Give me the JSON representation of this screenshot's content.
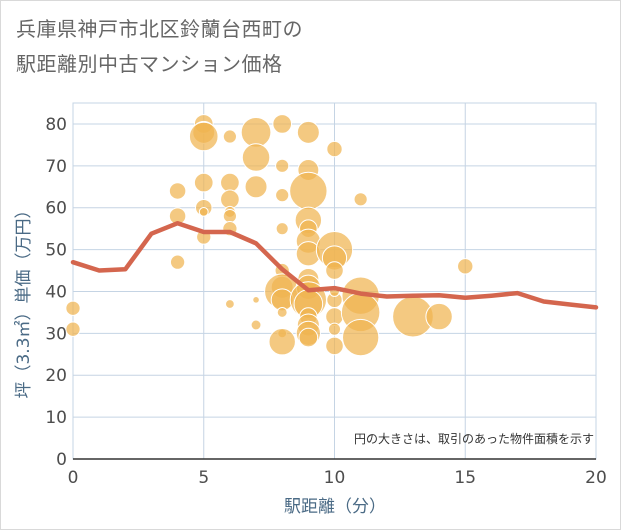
{
  "title_line1": "兵庫県神戸市北区鈴蘭台西町の",
  "title_line2": "駅距離別中古マンション価格",
  "chart_data": {
    "type": "scatter",
    "xlabel": "駅距離（分）",
    "ylabel": "坪（3.3㎡）単価（万円）",
    "xlim": [
      0,
      20
    ],
    "ylim": [
      0,
      85
    ],
    "xticks": [
      0,
      5,
      10,
      15,
      20
    ],
    "yticks": [
      0,
      10,
      20,
      30,
      40,
      50,
      60,
      70,
      80
    ],
    "grid": true,
    "note": "円の大きさは、取引のあった物件面積を示す",
    "bubble_color": "#f0b450",
    "line_color": "#d4664e",
    "bubbles": [
      {
        "x": 0,
        "y": 36,
        "s": 1.3
      },
      {
        "x": 0,
        "y": 31,
        "s": 1.3
      },
      {
        "x": 4,
        "y": 64,
        "s": 1.5
      },
      {
        "x": 4,
        "y": 58,
        "s": 1.5
      },
      {
        "x": 4,
        "y": 47,
        "s": 1.3
      },
      {
        "x": 5,
        "y": 80,
        "s": 1.7
      },
      {
        "x": 5,
        "y": 78,
        "s": 2.0
      },
      {
        "x": 5,
        "y": 77,
        "s": 2.6
      },
      {
        "x": 5,
        "y": 66,
        "s": 1.7
      },
      {
        "x": 5,
        "y": 60,
        "s": 1.5
      },
      {
        "x": 5,
        "y": 59,
        "s": 0.8
      },
      {
        "x": 5,
        "y": 53,
        "s": 1.3
      },
      {
        "x": 6,
        "y": 77,
        "s": 1.2
      },
      {
        "x": 6,
        "y": 66,
        "s": 1.7
      },
      {
        "x": 6,
        "y": 62,
        "s": 1.7
      },
      {
        "x": 6,
        "y": 59,
        "s": 1.0
      },
      {
        "x": 6,
        "y": 58,
        "s": 1.2
      },
      {
        "x": 6,
        "y": 55,
        "s": 1.3
      },
      {
        "x": 6,
        "y": 37,
        "s": 0.8
      },
      {
        "x": 7,
        "y": 78,
        "s": 2.7
      },
      {
        "x": 7,
        "y": 72,
        "s": 2.5
      },
      {
        "x": 7,
        "y": 65,
        "s": 2.0
      },
      {
        "x": 7,
        "y": 38,
        "s": 0.6
      },
      {
        "x": 7,
        "y": 32,
        "s": 0.9
      },
      {
        "x": 8,
        "y": 80,
        "s": 1.7
      },
      {
        "x": 8,
        "y": 70,
        "s": 1.2
      },
      {
        "x": 8,
        "y": 63,
        "s": 1.2
      },
      {
        "x": 8,
        "y": 55,
        "s": 1.1
      },
      {
        "x": 8,
        "y": 45,
        "s": 1.3
      },
      {
        "x": 8,
        "y": 41,
        "s": 2.0
      },
      {
        "x": 8,
        "y": 40,
        "s": 3.2
      },
      {
        "x": 8,
        "y": 38,
        "s": 2.0
      },
      {
        "x": 8,
        "y": 35,
        "s": 0.9
      },
      {
        "x": 8,
        "y": 30,
        "s": 0.8
      },
      {
        "x": 8,
        "y": 28,
        "s": 2.4
      },
      {
        "x": 9,
        "y": 78,
        "s": 2.0
      },
      {
        "x": 9,
        "y": 69,
        "s": 1.9
      },
      {
        "x": 9,
        "y": 64,
        "s": 3.4
      },
      {
        "x": 9,
        "y": 57,
        "s": 2.4
      },
      {
        "x": 9,
        "y": 55,
        "s": 1.6
      },
      {
        "x": 9,
        "y": 52,
        "s": 2.2
      },
      {
        "x": 9,
        "y": 49,
        "s": 2.2
      },
      {
        "x": 9,
        "y": 43,
        "s": 1.9
      },
      {
        "x": 9,
        "y": 41,
        "s": 2.2
      },
      {
        "x": 9,
        "y": 38,
        "s": 3.3
      },
      {
        "x": 9,
        "y": 37,
        "s": 2.6
      },
      {
        "x": 9,
        "y": 34,
        "s": 1.6
      },
      {
        "x": 9,
        "y": 32,
        "s": 2.0
      },
      {
        "x": 9,
        "y": 30,
        "s": 2.2
      },
      {
        "x": 9,
        "y": 29,
        "s": 1.7
      },
      {
        "x": 10,
        "y": 74,
        "s": 1.4
      },
      {
        "x": 10,
        "y": 50,
        "s": 3.3
      },
      {
        "x": 10,
        "y": 48,
        "s": 2.2
      },
      {
        "x": 10,
        "y": 45,
        "s": 1.6
      },
      {
        "x": 10,
        "y": 38,
        "s": 1.4
      },
      {
        "x": 10,
        "y": 34,
        "s": 1.6
      },
      {
        "x": 10,
        "y": 31,
        "s": 1.1
      },
      {
        "x": 10,
        "y": 27,
        "s": 1.6
      },
      {
        "x": 10,
        "y": 40,
        "s": 0.9
      },
      {
        "x": 11,
        "y": 62,
        "s": 1.2
      },
      {
        "x": 11,
        "y": 39,
        "s": 3.4
      },
      {
        "x": 11,
        "y": 35,
        "s": 3.5
      },
      {
        "x": 11,
        "y": 29,
        "s": 3.3
      },
      {
        "x": 13,
        "y": 34,
        "s": 3.7
      },
      {
        "x": 14,
        "y": 34,
        "s": 2.4
      },
      {
        "x": 15,
        "y": 46,
        "s": 1.4
      }
    ],
    "avg_line": {
      "x": [
        0,
        1,
        2,
        3,
        4,
        5,
        6,
        7,
        8,
        9,
        10,
        11,
        12,
        13,
        14,
        15,
        16,
        17,
        18,
        19,
        20
      ],
      "y": [
        47,
        45,
        45.3,
        53.8,
        56.3,
        54.2,
        54.2,
        51.5,
        45.3,
        40.3,
        40.8,
        39.5,
        38.8,
        39,
        39.1,
        38.5,
        39,
        39.6,
        37.6,
        36.9,
        36.2
      ]
    }
  }
}
